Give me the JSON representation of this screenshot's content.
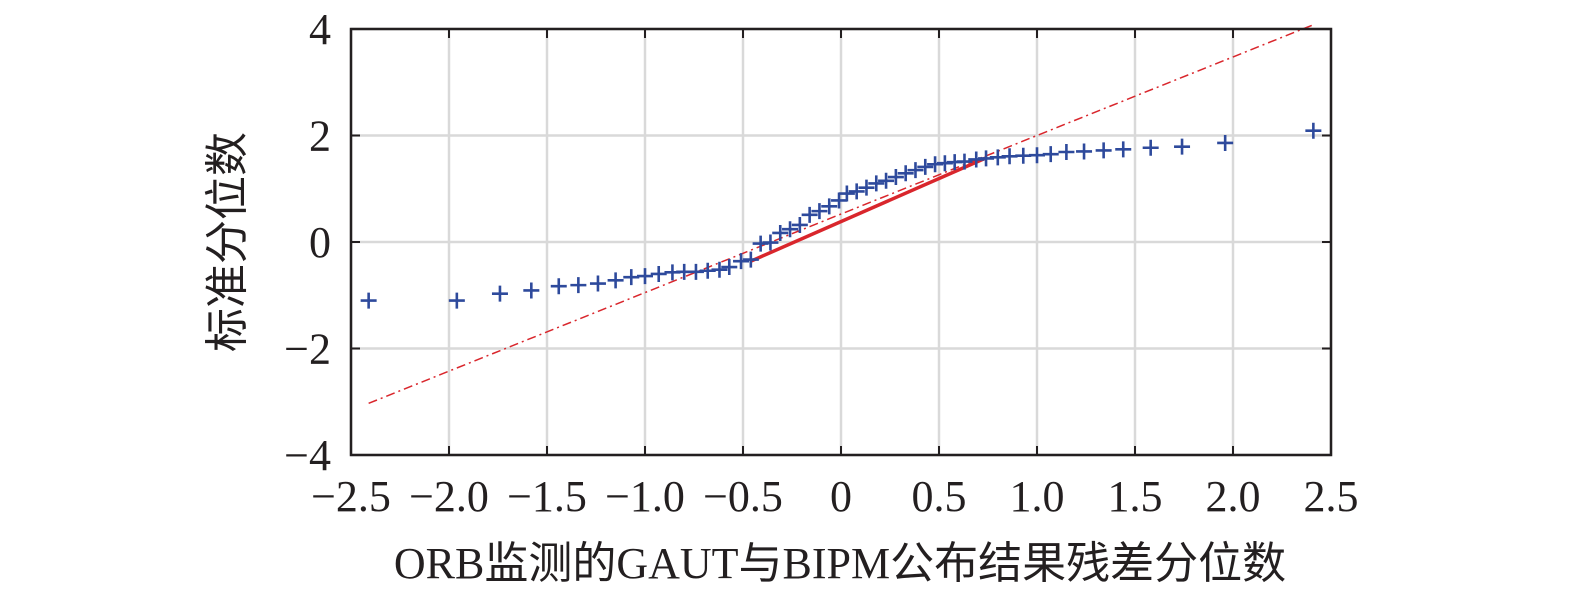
{
  "chart_data": {
    "type": "scatter",
    "title": "",
    "xlabel": "ORB监测的GAUT与BIPM公布结果残差分位数",
    "ylabel": "标准分位数",
    "xlim": [
      -2.5,
      2.5
    ],
    "ylim": [
      -4,
      4
    ],
    "xticks": [
      -2.5,
      -2.0,
      -1.5,
      -1.0,
      -0.5,
      0,
      0.5,
      1.0,
      1.5,
      2.0,
      2.5
    ],
    "xtick_labels": [
      "−2.5",
      "−2.0",
      "−1.5",
      "−1.0",
      "−0.5",
      "0",
      "0.5",
      "1.0",
      "1.5",
      "2.0",
      "2.5"
    ],
    "yticks": [
      -4,
      -2,
      0,
      2,
      4
    ],
    "ytick_labels": [
      "−4",
      "−2",
      "0",
      "2",
      "4"
    ],
    "grid": true,
    "colors": {
      "points": "#2e4a9c",
      "fit_line": "#d9262c",
      "reference_line": "#d9262c",
      "grid": "#d9d9d9",
      "axes": "#231f20"
    },
    "marker": "plus",
    "series": [
      {
        "points": [
          [
            -2.41,
            -1.1
          ],
          [
            -1.96,
            -1.1
          ],
          [
            -1.74,
            -0.97
          ],
          [
            -1.58,
            -0.91
          ],
          [
            -1.44,
            -0.83
          ],
          [
            -1.34,
            -0.81
          ],
          [
            -1.24,
            -0.78
          ],
          [
            -1.15,
            -0.72
          ],
          [
            -1.07,
            -0.66
          ],
          [
            -1.0,
            -0.64
          ],
          [
            -0.93,
            -0.6
          ],
          [
            -0.86,
            -0.57
          ],
          [
            -0.8,
            -0.56
          ],
          [
            -0.74,
            -0.56
          ],
          [
            -0.68,
            -0.54
          ],
          [
            -0.62,
            -0.52
          ],
          [
            -0.57,
            -0.47
          ],
          [
            -0.51,
            -0.36
          ],
          [
            -0.46,
            -0.33
          ],
          [
            -0.41,
            -0.03
          ],
          [
            -0.36,
            -0.01
          ],
          [
            -0.31,
            0.17
          ],
          [
            -0.26,
            0.24
          ],
          [
            -0.21,
            0.32
          ],
          [
            -0.16,
            0.51
          ],
          [
            -0.11,
            0.58
          ],
          [
            -0.06,
            0.67
          ],
          [
            -0.01,
            0.78
          ],
          [
            0.03,
            0.91
          ],
          [
            0.08,
            0.95
          ],
          [
            0.13,
            1.02
          ],
          [
            0.18,
            1.1
          ],
          [
            0.23,
            1.15
          ],
          [
            0.28,
            1.22
          ],
          [
            0.33,
            1.29
          ],
          [
            0.38,
            1.35
          ],
          [
            0.43,
            1.41
          ],
          [
            0.48,
            1.46
          ],
          [
            0.53,
            1.48
          ],
          [
            0.58,
            1.5
          ],
          [
            0.63,
            1.51
          ],
          [
            0.69,
            1.55
          ],
          [
            0.74,
            1.57
          ],
          [
            0.8,
            1.59
          ],
          [
            0.86,
            1.61
          ],
          [
            0.93,
            1.62
          ],
          [
            1.0,
            1.63
          ],
          [
            1.07,
            1.65
          ],
          [
            1.15,
            1.69
          ],
          [
            1.24,
            1.7
          ],
          [
            1.34,
            1.72
          ],
          [
            1.44,
            1.74
          ],
          [
            1.58,
            1.77
          ],
          [
            1.74,
            1.79
          ],
          [
            1.96,
            1.86
          ],
          [
            2.41,
            2.09
          ]
        ]
      }
    ],
    "fit_line": {
      "x": [
        -0.46,
        0.74
      ],
      "y": [
        -0.36,
        1.58
      ]
    },
    "reference_line": {
      "x": [
        -2.41,
        2.41
      ],
      "y": [
        -3.03,
        4.08
      ]
    }
  }
}
